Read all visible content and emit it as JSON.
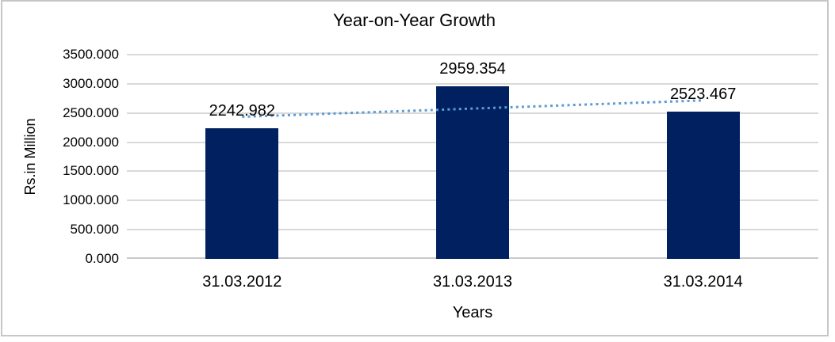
{
  "chart_data": {
    "type": "bar",
    "title": "Year-on-Year Growth",
    "xlabel": "Years",
    "ylabel": "Rs.in Million",
    "categories": [
      "31.03.2012",
      "31.03.2013",
      "31.03.2014"
    ],
    "values": [
      2242.982,
      2959.354,
      2523.467
    ],
    "data_labels": [
      "2242.982",
      "2959.354",
      "2523.467"
    ],
    "ylim": [
      0,
      3500
    ],
    "ytick_step": 500,
    "ytick_labels": [
      "0.000",
      "500.000",
      "1000.000",
      "1500.000",
      "2000.000",
      "2500.000",
      "3000.000",
      "3500.000"
    ],
    "grid": "horizontal",
    "legend": "none",
    "trendline": {
      "type": "linear",
      "style": "dotted",
      "endpoint_values": [
        2435.0,
        2715.5
      ]
    },
    "colors": {
      "bar": "#002060",
      "trendline": "#5b9bd5",
      "gridline": "#d9d9d9",
      "axis_line": "#c9c9c9",
      "text": "#000000",
      "frame_border": "#c6c6c6",
      "background": "#ffffff"
    }
  }
}
